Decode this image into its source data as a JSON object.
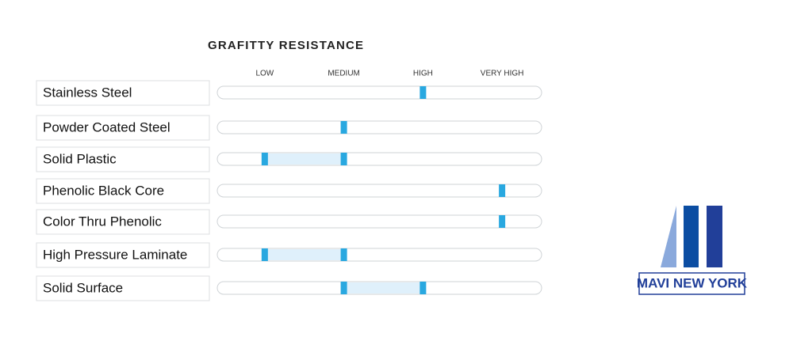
{
  "chart_data": {
    "type": "range",
    "title": "GRAFITTY RESISTANCE",
    "categories": [
      "Stainless Steel",
      "Powder Coated Steel",
      "Solid Plastic",
      "Phenolic Black Core",
      "Color Thru Phenolic",
      "High Pressure Laminate",
      "Solid Surface"
    ],
    "low": [
      3,
      2,
      1,
      4,
      4,
      1,
      2
    ],
    "high": [
      3,
      2,
      2,
      4,
      4,
      2,
      3
    ],
    "color": "#29a8e0",
    "range_color": "#dff0fb",
    "xlim": [
      0.4,
      4.5
    ],
    "xticks": [
      {
        "value": 1,
        "label": "LOW"
      },
      {
        "value": 2,
        "label": "MEDIUM"
      },
      {
        "value": 3,
        "label": "HIGH"
      },
      {
        "value": 4,
        "label": "VERY HIGH"
      }
    ]
  },
  "logo": "MAVI NEW YORK"
}
